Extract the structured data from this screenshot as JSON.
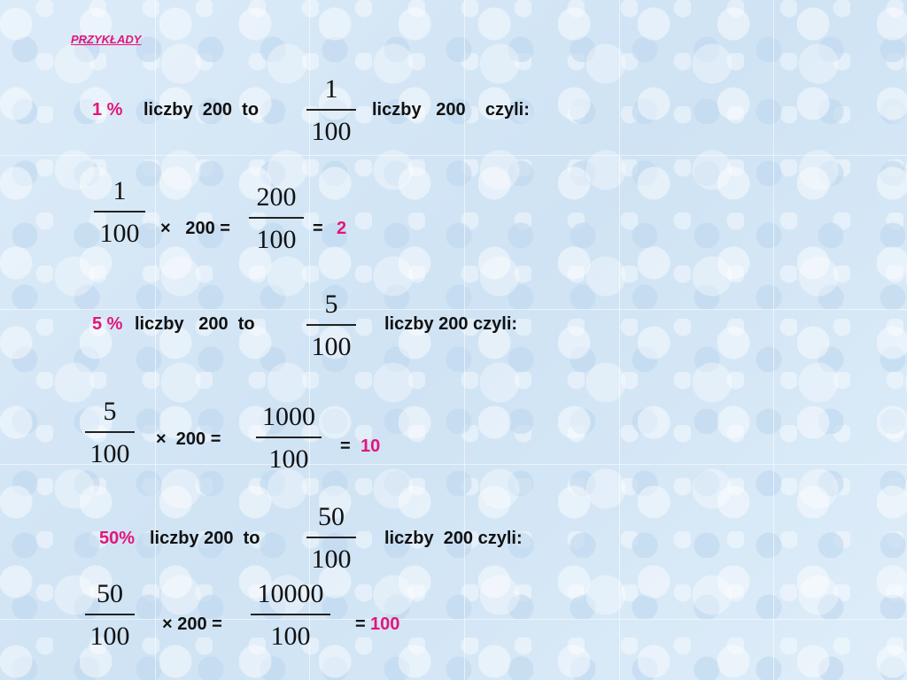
{
  "heading": "PRZYKŁADY",
  "colors": {
    "accent": "#e3157a",
    "background": "#d6e8f6"
  },
  "ex1": {
    "percent": "1 %",
    "text_a": "liczby  200  to",
    "frac_num": "1",
    "frac_den": "100",
    "text_b": "liczby   200    czyli:",
    "calc_num": "1",
    "calc_den": "100",
    "times": "×   200 =",
    "res_num": "200",
    "res_den": "100",
    "eq": "=",
    "result": "2"
  },
  "ex2": {
    "percent": "5 %",
    "text_a": "liczby   200  to",
    "frac_num": "5",
    "frac_den": "100",
    "text_b": "liczby 200 czyli:",
    "calc_num": "5",
    "calc_den": "100",
    "times": "×  200 =",
    "res_num": "1000",
    "res_den": "100",
    "eq": "=",
    "result": "10"
  },
  "ex3": {
    "percent": "50%",
    "text_a": "liczby 200  to",
    "frac_num": "50",
    "frac_den": "100",
    "text_b": "liczby  200 czyli:",
    "calc_num": "50",
    "calc_den": "100",
    "times": "× 200 =",
    "res_num": "10000",
    "res_den": "100",
    "eq": "=",
    "result": "100"
  }
}
